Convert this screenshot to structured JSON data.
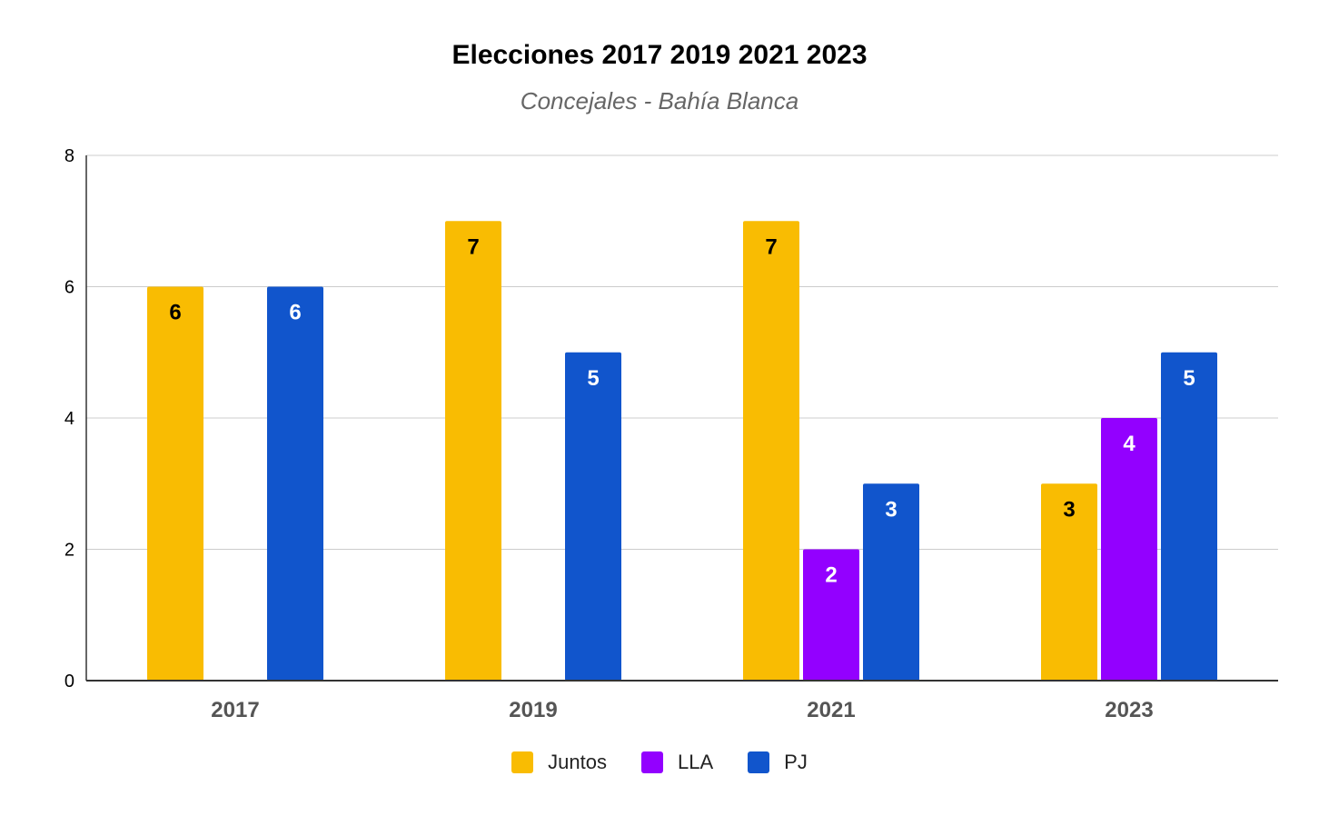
{
  "chart_data": {
    "type": "bar",
    "title": "Elecciones 2017 2019 2021 2023",
    "subtitle": "Concejales - Bahía Blanca",
    "xlabel": "",
    "ylabel": "",
    "categories": [
      "2017",
      "2019",
      "2021",
      "2023"
    ],
    "series": [
      {
        "name": "Juntos",
        "color": "#F9BC02",
        "label_color": "#000000",
        "values": [
          6,
          7,
          7,
          3
        ]
      },
      {
        "name": "LLA",
        "color": "#9300FF",
        "label_color": "#FFFFFF",
        "values": [
          null,
          null,
          2,
          4
        ]
      },
      {
        "name": "PJ",
        "color": "#1155CC",
        "label_color": "#FFFFFF",
        "values": [
          6,
          5,
          3,
          5
        ]
      }
    ],
    "ylim": [
      0,
      8
    ],
    "yticks": [
      "0",
      "2",
      "4",
      "6",
      "8"
    ],
    "grid": true,
    "legend_position": "bottom"
  }
}
